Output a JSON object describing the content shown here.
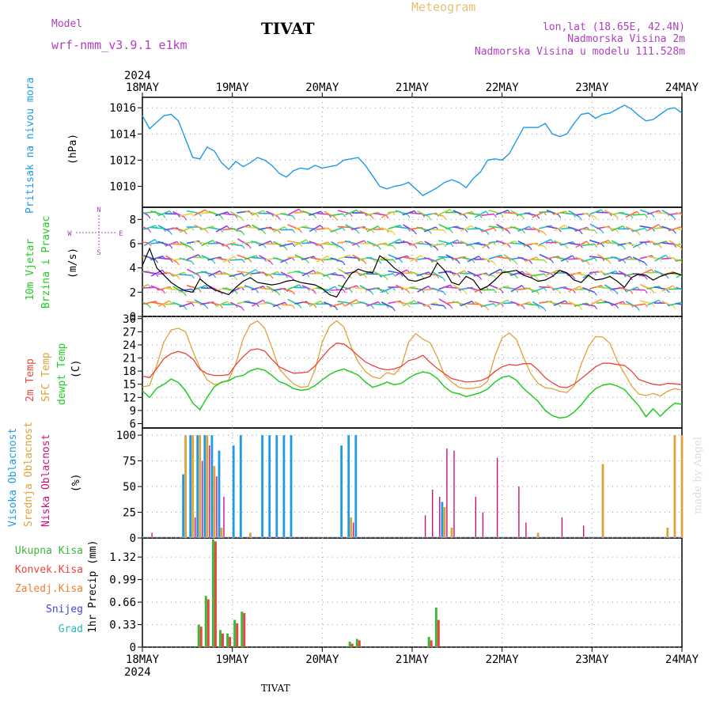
{
  "header": {
    "model_label": "Model",
    "model_name": "wrf-nmm_v3.9.1  e1km",
    "title": "TIVAT",
    "meteogram": "Meteogram",
    "lonlat": "lon,lat (18.65E, 42.4N)",
    "elevation": "Nadmorska Visina 2m",
    "model_elevation": "Nadmorska Visina u modelu 111.528m",
    "year_top": "2024",
    "year_bottom": "2024",
    "footer_station": "TIVAT",
    "watermark": "made by Angel"
  },
  "colors": {
    "pressure": "#1e9be6",
    "temp2m": "#e8453c",
    "sfc": "#e0a23a",
    "dewpt": "#22cc22",
    "high": "#1e9be6",
    "mid": "#e0a23a",
    "low": "#cc1177",
    "total": "#3cb83c",
    "konv": "#e8453c",
    "zaled": "#f08030",
    "snijeg": "#4444dd",
    "grad": "#22bbbb",
    "label": "#b040c0"
  },
  "chart_data": [
    {
      "type": "line",
      "name": "pressure",
      "ylabel_main": "Pritisak na nivou mora",
      "ylabel_unit": "(hPa)",
      "x_labels": [
        "18MAY",
        "19MAY",
        "20MAY",
        "21MAY",
        "22MAY",
        "23MAY",
        "24MAY"
      ],
      "ylim": [
        1008.4,
        1016.8
      ],
      "yticks": [
        1010,
        1012,
        1014,
        1016
      ],
      "series": [
        {
          "values": [
            1015.4,
            1014.4,
            1014.9,
            1015.4,
            1015.5,
            1015.0,
            1013.6,
            1012.2,
            1012.1,
            1013.0,
            1012.7,
            1011.8,
            1011.3,
            1011.9,
            1011.5,
            1011.8,
            1012.2,
            1012.0,
            1011.6,
            1011.0,
            1010.7,
            1011.2,
            1011.4,
            1011.3,
            1011.6,
            1011.4,
            1011.5,
            1011.6,
            1012.0,
            1012.1,
            1012.2,
            1011.6,
            1010.8,
            1010.0,
            1009.8,
            1010.0,
            1010.1,
            1010.3,
            1009.8,
            1009.3,
            1009.6,
            1009.9,
            1010.3,
            1010.5,
            1010.3,
            1009.9,
            1010.6,
            1011.1,
            1012.0,
            1012.1,
            1012.0,
            1012.5,
            1013.5,
            1014.5,
            1014.5,
            1014.5,
            1014.8,
            1014.0,
            1013.8,
            1014.0,
            1014.8,
            1015.5,
            1015.6,
            1015.2,
            1015.5,
            1015.6,
            1015.9,
            1016.2,
            1015.9,
            1015.4,
            1015.0,
            1015.1,
            1015.5,
            1015.9,
            1016.0,
            1015.6
          ]
        }
      ]
    },
    {
      "type": "scatter",
      "name": "wind",
      "ylabel_main": "10m Vjetar",
      "ylabel_sub": "Brzina i Pravac",
      "ylabel_unit": "(m/s)",
      "compass": {
        "n": "N",
        "w": "W",
        "e": "E",
        "s": "S"
      },
      "ylim": [
        0,
        9
      ],
      "yticks": [
        0,
        2,
        4,
        6,
        8
      ],
      "series": [
        {
          "values": [
            4.2,
            5.6,
            4.0,
            3.4,
            2.8,
            2.4,
            2.1,
            2.0,
            3.1,
            2.6,
            2.2,
            2.0,
            1.8,
            2.4,
            2.9,
            3.2,
            2.8,
            2.7,
            2.6,
            2.7,
            2.9,
            3.0,
            2.8,
            2.7,
            2.6,
            2.3,
            1.8,
            1.6,
            2.6,
            3.5,
            3.9,
            3.7,
            3.6,
            5.0,
            4.6,
            4.0,
            3.6,
            3.0,
            2.9,
            3.1,
            3.3,
            4.4,
            3.8,
            2.8,
            2.6,
            3.3,
            3.0,
            2.2,
            2.5,
            3.0,
            3.6,
            3.7,
            3.8,
            3.4,
            3.2,
            2.9,
            3.0,
            3.3,
            3.8,
            3.6,
            3.0,
            2.8,
            3.4,
            3.0,
            3.1,
            3.3,
            2.9,
            2.4,
            3.2,
            3.5,
            3.4,
            3.0,
            3.3,
            3.5,
            3.6,
            3.4
          ]
        }
      ]
    },
    {
      "type": "line",
      "name": "temperature",
      "ylabels": [
        "2m Temp",
        "SFC Temp",
        "dewpt Temp"
      ],
      "ylabel_unit": "(C)",
      "ylim": [
        5,
        30.5
      ],
      "yticks": [
        6,
        9,
        12,
        15,
        18,
        21,
        24,
        27,
        30
      ],
      "series": [
        {
          "name": "2m Temp",
          "values": [
            16.9,
            16.5,
            18.6,
            20.9,
            22.0,
            22.5,
            22.0,
            20.8,
            18.4,
            17.4,
            17.0,
            17.0,
            17.2,
            19.5,
            21.3,
            22.8,
            23.1,
            22.6,
            20.7,
            19.0,
            18.2,
            17.5,
            17.6,
            17.8,
            19.2,
            21.2,
            23.1,
            24.4,
            24.2,
            23.0,
            21.5,
            20.1,
            19.3,
            18.6,
            18.3,
            18.5,
            19.1,
            20.4,
            20.8,
            21.6,
            20.0,
            18.6,
            17.4,
            16.3,
            15.9,
            15.5,
            15.6,
            15.8,
            16.5,
            17.9,
            19.0,
            19.5,
            19.3,
            19.7,
            19.7,
            18.3,
            16.5,
            15.3,
            14.4,
            14.2,
            15.0,
            16.3,
            17.6,
            19.0,
            19.8,
            19.8,
            19.5,
            19.3,
            18.0,
            16.1,
            15.5,
            15.0,
            14.8,
            15.2,
            15.1,
            14.9
          ]
        },
        {
          "name": "SFC Temp",
          "values": [
            14.4,
            14.7,
            19.4,
            24.7,
            27.4,
            27.8,
            27.0,
            22.6,
            18.8,
            16.0,
            14.9,
            15.3,
            16.0,
            19.8,
            25.4,
            28.6,
            29.5,
            27.8,
            23.4,
            18.6,
            16.7,
            15.1,
            14.3,
            14.5,
            18.3,
            24.6,
            28.2,
            29.5,
            28.1,
            23.6,
            20.1,
            17.9,
            16.7,
            16.3,
            17.7,
            17.2,
            19.1,
            24.6,
            26.6,
            25.3,
            24.5,
            21.2,
            17.1,
            15.5,
            14.3,
            14.0,
            14.1,
            14.4,
            15.7,
            21.5,
            25.6,
            26.7,
            25.2,
            21.1,
            17.4,
            15.2,
            14.2,
            14.0,
            13.4,
            13.1,
            14.6,
            19.6,
            23.6,
            25.9,
            25.8,
            24.3,
            20.3,
            17.5,
            14.6,
            12.8,
            12.4,
            12.9,
            12.3,
            13.4,
            14.0,
            13.6
          ]
        },
        {
          "name": "dewpt Temp",
          "values": [
            13.5,
            12.0,
            14.1,
            15.0,
            16.2,
            15.4,
            13.5,
            10.7,
            9.2,
            12.0,
            14.4,
            15.5,
            15.8,
            16.7,
            17.0,
            18.1,
            18.6,
            18.2,
            17.0,
            15.6,
            15.0,
            14.0,
            13.6,
            13.8,
            14.7,
            16.0,
            17.2,
            18.0,
            18.5,
            17.8,
            17.1,
            15.5,
            14.3,
            14.8,
            15.5,
            14.9,
            15.2,
            16.4,
            17.3,
            17.8,
            17.5,
            16.3,
            14.4,
            13.2,
            12.8,
            12.2,
            12.6,
            13.1,
            13.9,
            15.5,
            16.6,
            16.9,
            15.9,
            14.0,
            12.6,
            11.1,
            9.0,
            7.8,
            7.3,
            7.5,
            8.6,
            10.3,
            12.4,
            14.0,
            14.8,
            15.1,
            14.6,
            13.8,
            11.9,
            10.1,
            7.6,
            9.4,
            7.7,
            9.3,
            10.7,
            10.4
          ]
        }
      ]
    },
    {
      "type": "bar",
      "name": "clouds",
      "ylabels": [
        "Visoka Oblacnost",
        "Srednja Oblacnost",
        "Niska Oblacnost"
      ],
      "ylabel_unit": "(%)",
      "ylim": [
        0,
        100
      ],
      "yticks": [
        0,
        25,
        50,
        75,
        100
      ],
      "series": [
        {
          "name": "Visoka Oblacnost",
          "values": [
            0,
            0,
            0,
            0,
            0,
            0,
            62,
            100,
            100,
            100,
            100,
            85,
            0,
            90,
            100,
            0,
            0,
            100,
            100,
            100,
            100,
            100,
            0,
            0,
            0,
            0,
            0,
            0,
            90,
            100,
            100,
            0,
            0,
            0,
            0,
            0,
            0,
            0,
            0,
            0,
            0,
            0,
            35,
            0,
            0,
            0,
            0,
            0,
            0,
            0,
            0,
            0,
            0,
            0,
            0,
            0,
            0,
            0,
            0,
            0,
            0,
            0,
            0,
            0,
            0,
            0,
            0,
            0,
            0,
            0,
            0,
            0,
            0,
            0,
            0,
            0
          ]
        },
        {
          "name": "Srednja Oblacnost",
          "values": [
            0,
            0,
            0,
            0,
            0,
            0,
            100,
            100,
            100,
            100,
            70,
            10,
            0,
            0,
            0,
            5,
            0,
            0,
            0,
            0,
            0,
            0,
            0,
            0,
            0,
            0,
            0,
            0,
            0,
            20,
            0,
            0,
            0,
            0,
            0,
            0,
            0,
            0,
            0,
            0,
            0,
            0,
            30,
            10,
            0,
            0,
            0,
            0,
            0,
            0,
            0,
            0,
            0,
            0,
            0,
            5,
            0,
            0,
            0,
            0,
            0,
            0,
            0,
            0,
            72,
            0,
            0,
            0,
            0,
            0,
            0,
            0,
            0,
            10,
            100,
            100
          ]
        },
        {
          "name": "Niska Oblacnost",
          "values": [
            0,
            5,
            0,
            0,
            0,
            0,
            0,
            20,
            75,
            90,
            60,
            40,
            0,
            0,
            0,
            0,
            0,
            0,
            0,
            0,
            0,
            0,
            0,
            0,
            0,
            0,
            0,
            0,
            0,
            15,
            0,
            0,
            0,
            0,
            0,
            0,
            0,
            0,
            0,
            22,
            47,
            40,
            87,
            85,
            0,
            0,
            40,
            25,
            0,
            78,
            0,
            0,
            50,
            15,
            0,
            0,
            0,
            0,
            20,
            0,
            0,
            12,
            0,
            0,
            0,
            0,
            0,
            0,
            0,
            0,
            0,
            0,
            0,
            0,
            0,
            0
          ]
        }
      ]
    },
    {
      "type": "bar",
      "name": "precipitation",
      "ylabels": [
        "Ukupna Kisa",
        "Konvek.Kisa",
        "Zaledj.Kisa",
        "Snijeg",
        "Grad"
      ],
      "ylabel_unit": "1hr Precip (mm)",
      "ylim": [
        0,
        1.6
      ],
      "yticks": [
        0,
        0.33,
        0.66,
        0.99,
        1.32
      ],
      "series": [
        {
          "name": "Ukupna Kisa",
          "values": [
            0,
            0,
            0,
            0,
            0,
            0,
            0,
            0,
            0.33,
            0.75,
            1.58,
            0.25,
            0.2,
            0.4,
            0.52,
            0,
            0,
            0,
            0,
            0,
            0,
            0,
            0,
            0,
            0,
            0,
            0,
            0,
            0,
            0.08,
            0.12,
            0,
            0,
            0,
            0,
            0,
            0,
            0,
            0,
            0,
            0.15,
            0.58,
            0,
            0,
            0,
            0,
            0,
            0,
            0,
            0,
            0,
            0,
            0,
            0,
            0,
            0,
            0,
            0,
            0,
            0,
            0,
            0,
            0,
            0,
            0,
            0,
            0,
            0,
            0,
            0,
            0,
            0,
            0,
            0,
            0,
            0
          ]
        },
        {
          "name": "Konvek.Kisa",
          "values": [
            0,
            0,
            0,
            0,
            0,
            0,
            0,
            0,
            0.3,
            0.7,
            1.55,
            0.2,
            0.15,
            0.35,
            0.5,
            0,
            0,
            0,
            0,
            0,
            0,
            0,
            0,
            0,
            0,
            0,
            0,
            0,
            0,
            0.05,
            0.1,
            0,
            0,
            0,
            0,
            0,
            0,
            0,
            0,
            0,
            0.1,
            0.4,
            0,
            0,
            0,
            0,
            0,
            0,
            0,
            0,
            0,
            0,
            0,
            0,
            0,
            0,
            0,
            0,
            0,
            0,
            0,
            0,
            0,
            0,
            0,
            0,
            0,
            0,
            0,
            0,
            0,
            0,
            0,
            0,
            0,
            0
          ]
        }
      ]
    }
  ]
}
